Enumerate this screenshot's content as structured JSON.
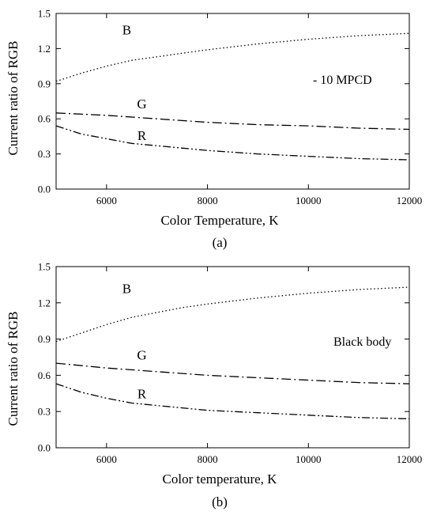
{
  "chart_data": [
    {
      "type": "line",
      "panel_label": "(a)",
      "xlabel": "Color Temperature, K",
      "ylabel": "Current ratio of  RGB",
      "annotation": "- 10 MPCD",
      "xlim": [
        5000,
        12000
      ],
      "ylim": [
        0.0,
        1.5
      ],
      "xticks": [
        "6000",
        "8000",
        "10000",
        "12000"
      ],
      "yticks": [
        "0.0",
        "0.3",
        "0.6",
        "0.9",
        "1.2",
        "1.5"
      ],
      "series": [
        {
          "name": "B",
          "style": "dotted",
          "x": [
            5000,
            5500,
            6000,
            6500,
            7000,
            7500,
            8000,
            9000,
            10000,
            11000,
            12000
          ],
          "y": [
            0.92,
            0.99,
            1.05,
            1.1,
            1.13,
            1.16,
            1.19,
            1.24,
            1.28,
            1.31,
            1.33
          ]
        },
        {
          "name": "G",
          "style": "dash-dot",
          "x": [
            5000,
            6000,
            7000,
            8000,
            9000,
            10000,
            11000,
            12000
          ],
          "y": [
            0.65,
            0.63,
            0.6,
            0.57,
            0.55,
            0.54,
            0.52,
            0.51
          ]
        },
        {
          "name": "R",
          "style": "dash-dot-dot",
          "x": [
            5000,
            5500,
            6000,
            6500,
            7000,
            7500,
            8000,
            9000,
            10000,
            11000,
            12000
          ],
          "y": [
            0.54,
            0.47,
            0.43,
            0.39,
            0.37,
            0.35,
            0.33,
            0.3,
            0.28,
            0.26,
            0.25
          ]
        }
      ]
    },
    {
      "type": "line",
      "panel_label": "(b)",
      "xlabel": "Color temperature, K",
      "ylabel": "Current ratio of  RGB",
      "annotation": "Black body",
      "xlim": [
        5000,
        12000
      ],
      "ylim": [
        0.0,
        1.5
      ],
      "xticks": [
        "6000",
        "8000",
        "10000",
        "12000"
      ],
      "yticks": [
        "0.0",
        "0.3",
        "0.6",
        "0.9",
        "1.2",
        "1.5"
      ],
      "series": [
        {
          "name": "B",
          "style": "dotted",
          "x": [
            5000,
            5500,
            6000,
            6500,
            7000,
            7500,
            8000,
            9000,
            10000,
            11000,
            12000
          ],
          "y": [
            0.88,
            0.95,
            1.02,
            1.08,
            1.12,
            1.16,
            1.19,
            1.24,
            1.28,
            1.31,
            1.33
          ]
        },
        {
          "name": "G",
          "style": "dash-dot",
          "x": [
            5000,
            6000,
            7000,
            8000,
            9000,
            10000,
            11000,
            12000
          ],
          "y": [
            0.7,
            0.66,
            0.63,
            0.6,
            0.58,
            0.56,
            0.54,
            0.53
          ]
        },
        {
          "name": "R",
          "style": "dash-dot-dot",
          "x": [
            5000,
            5500,
            6000,
            6500,
            7000,
            7500,
            8000,
            9000,
            10000,
            11000,
            12000
          ],
          "y": [
            0.53,
            0.46,
            0.41,
            0.37,
            0.35,
            0.33,
            0.31,
            0.29,
            0.27,
            0.25,
            0.24
          ]
        }
      ]
    }
  ]
}
